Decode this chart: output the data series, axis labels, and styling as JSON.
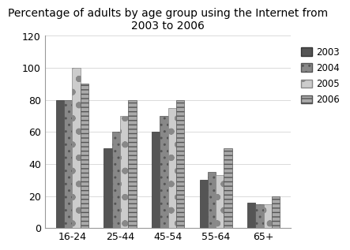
{
  "title": "Percentage of adults by age group using the Internet from\n2003 to 2006",
  "categories": [
    "16-24",
    "25-44",
    "45-54",
    "55-64",
    "65+"
  ],
  "years": [
    "2003",
    "2004",
    "2005",
    "2006"
  ],
  "values": {
    "2003": [
      80,
      50,
      60,
      30,
      16
    ],
    "2004": [
      80,
      60,
      70,
      35,
      15
    ],
    "2005": [
      100,
      70,
      75,
      33,
      15
    ],
    "2006": [
      90,
      80,
      80,
      50,
      20
    ]
  },
  "ylim": [
    0,
    120
  ],
  "yticks": [
    0,
    20,
    40,
    60,
    80,
    100,
    120
  ],
  "background_color": "#ffffff",
  "title_fontsize": 10,
  "legend_labels": [
    "2003",
    "2004",
    "2005",
    "2006"
  ],
  "bar_width": 0.17,
  "bar_styles": [
    {
      "color": "#555555",
      "hatch": "",
      "edgecolor": "#333333"
    },
    {
      "color": "#888888",
      "hatch": "..",
      "edgecolor": "#555555"
    },
    {
      "color": "#cccccc",
      "hatch": "o.",
      "edgecolor": "#888888"
    },
    {
      "color": "#aaaaaa",
      "hatch": "---",
      "edgecolor": "#555555"
    }
  ]
}
